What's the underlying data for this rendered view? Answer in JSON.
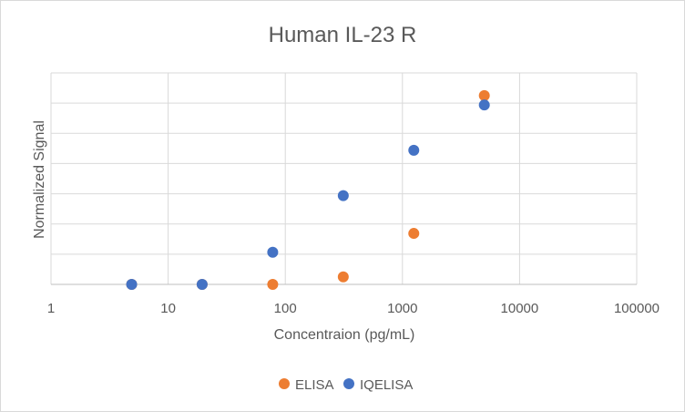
{
  "chart_data": {
    "type": "scatter",
    "title": "Human IL-23 R",
    "xlabel": "Concentraion (pg/mL)",
    "ylabel": "Normalized Signal",
    "x_scale": "log",
    "xlim": [
      1,
      100000
    ],
    "x_ticks": [
      "1",
      "10",
      "100",
      "1000",
      "10000",
      "100000"
    ],
    "ylim": [
      0,
      1
    ],
    "y_gridlines": 6,
    "grid": true,
    "legend_position": "bottom",
    "series": [
      {
        "name": "ELISA",
        "color": "#ED7D31",
        "points": [
          {
            "x": 4.88,
            "y": 0.0
          },
          {
            "x": 19.5,
            "y": 0.0
          },
          {
            "x": 78.1,
            "y": 0.0
          },
          {
            "x": 312.5,
            "y": 0.04
          },
          {
            "x": 1250,
            "y": 0.27
          },
          {
            "x": 5000,
            "y": 1.0
          }
        ]
      },
      {
        "name": "IQELISA",
        "color": "#4472C4",
        "points": [
          {
            "x": 4.88,
            "y": 0.0
          },
          {
            "x": 19.5,
            "y": 0.0
          },
          {
            "x": 78.1,
            "y": 0.17
          },
          {
            "x": 312.5,
            "y": 0.47
          },
          {
            "x": 1250,
            "y": 0.71
          },
          {
            "x": 5000,
            "y": 0.95
          }
        ]
      }
    ]
  }
}
